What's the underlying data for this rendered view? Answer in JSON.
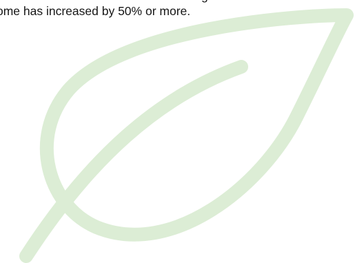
{
  "text": {
    "line_top_partial": "g",
    "line_bottom": "ome has increased by 50% or more."
  },
  "graphic": {
    "name": "leaf-outline",
    "color": "#dcedd5"
  }
}
